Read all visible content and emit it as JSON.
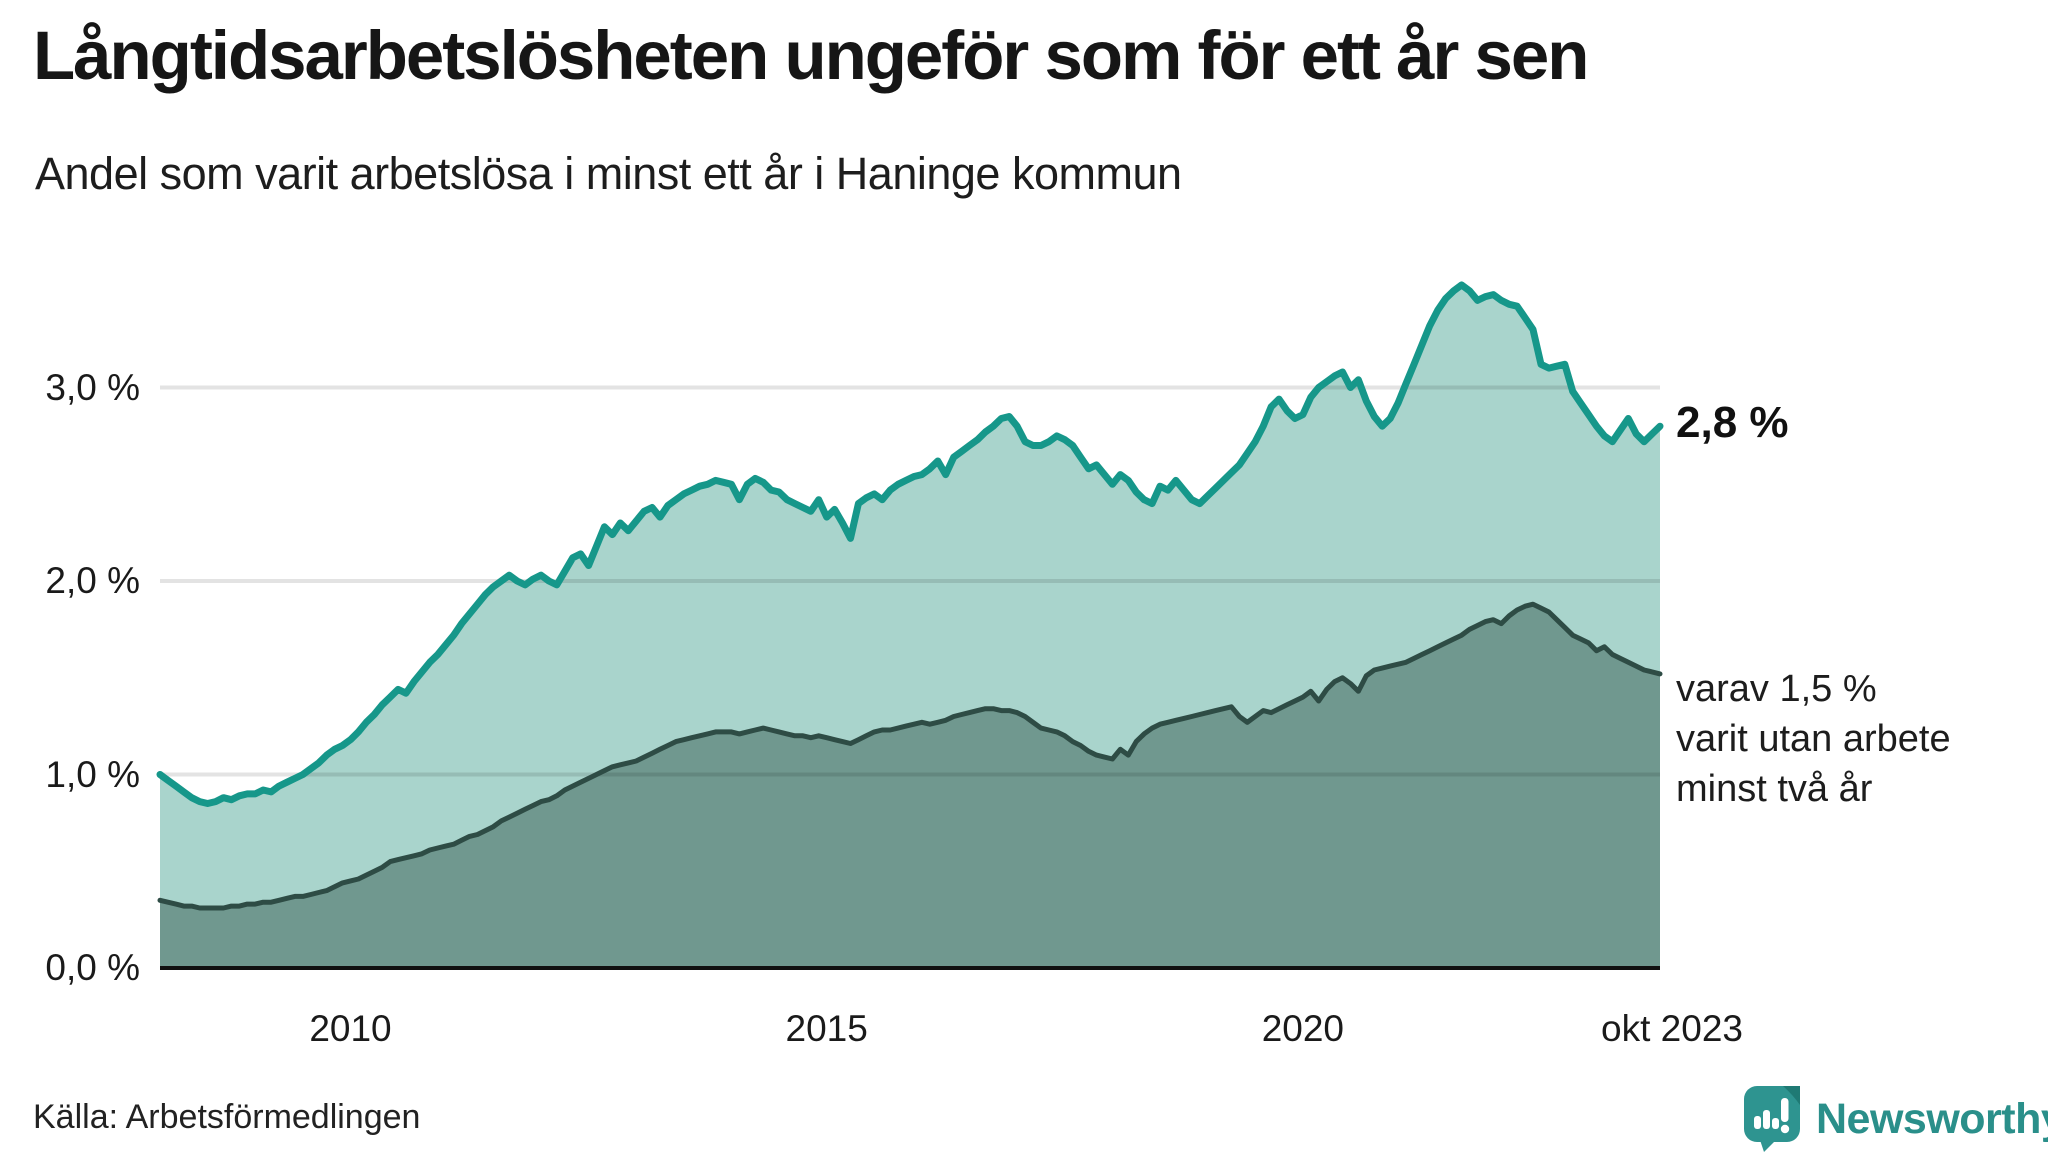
{
  "title": "Långtidsarbetslösheten ungeför som för ett år sen",
  "subtitle": "Andel som varit arbetslösa i minst ett år i Haninge kommun",
  "source": "Källa: Arbetsförmedlingen",
  "logo": {
    "text": "Newsworthy",
    "icon_color": "#2e9490",
    "icon_dark_corner": "#1f7a74",
    "text_color": "#2a8f8a"
  },
  "annotations": {
    "latest_total": "2,8 %",
    "secondary_lines": [
      "varav 1,5 %",
      "varit utan arbete",
      "minst två år"
    ]
  },
  "colors": {
    "background": "#ffffff",
    "grid": "rgba(0,0,0,0.11)",
    "axis": "#111111",
    "total_line": "#16978a",
    "total_fill": "#a9d4cc",
    "twoyear_line": "#2e4c45",
    "twoyear_fill": "#70988f"
  },
  "chart_data": {
    "type": "area",
    "title": "Långtidsarbetslösheten ungeför som för ett år sen",
    "subtitle": "Andel som varit arbetslösa i minst ett år i Haninge kommun",
    "unit": "%",
    "x_start": 2008.0,
    "x_end": 2023.75,
    "ylim": [
      0,
      3.6
    ],
    "grid": true,
    "legend": "annotations at line ends, no legend box",
    "y_ticks": [
      {
        "value": 0,
        "label": "0,0 %"
      },
      {
        "value": 1,
        "label": "1,0 %"
      },
      {
        "value": 2,
        "label": "2,0 %"
      },
      {
        "value": 3,
        "label": "3,0 %"
      }
    ],
    "x_ticks": [
      {
        "year": 2010,
        "label": "2010"
      },
      {
        "year": 2015,
        "label": "2015"
      },
      {
        "year": 2020,
        "label": "2020"
      },
      {
        "year": 2023.75,
        "label": "okt 2023"
      }
    ],
    "series": [
      {
        "name": "Andel arbetslösa minst ett år",
        "end_label": "2,8 %",
        "line_color": "#16978a",
        "fill_color": "#a9d4cc",
        "line_width": 7,
        "values": [
          1.0,
          0.97,
          0.94,
          0.91,
          0.88,
          0.86,
          0.85,
          0.86,
          0.88,
          0.87,
          0.89,
          0.9,
          0.9,
          0.92,
          0.91,
          0.94,
          0.96,
          0.98,
          1.0,
          1.03,
          1.06,
          1.1,
          1.13,
          1.15,
          1.18,
          1.22,
          1.27,
          1.31,
          1.36,
          1.4,
          1.44,
          1.42,
          1.48,
          1.53,
          1.58,
          1.62,
          1.67,
          1.72,
          1.78,
          1.83,
          1.88,
          1.93,
          1.97,
          2.0,
          2.03,
          2.0,
          1.98,
          2.01,
          2.03,
          2.0,
          1.98,
          2.05,
          2.12,
          2.14,
          2.08,
          2.18,
          2.28,
          2.24,
          2.3,
          2.26,
          2.31,
          2.36,
          2.38,
          2.33,
          2.39,
          2.42,
          2.45,
          2.47,
          2.49,
          2.5,
          2.52,
          2.51,
          2.5,
          2.42,
          2.5,
          2.53,
          2.51,
          2.47,
          2.46,
          2.42,
          2.4,
          2.38,
          2.36,
          2.42,
          2.33,
          2.37,
          2.3,
          2.22,
          2.4,
          2.43,
          2.45,
          2.42,
          2.47,
          2.5,
          2.52,
          2.54,
          2.55,
          2.58,
          2.62,
          2.55,
          2.64,
          2.67,
          2.7,
          2.73,
          2.77,
          2.8,
          2.84,
          2.85,
          2.8,
          2.72,
          2.7,
          2.7,
          2.72,
          2.75,
          2.73,
          2.7,
          2.64,
          2.58,
          2.6,
          2.55,
          2.5,
          2.55,
          2.52,
          2.46,
          2.42,
          2.4,
          2.49,
          2.47,
          2.52,
          2.47,
          2.42,
          2.4,
          2.44,
          2.48,
          2.52,
          2.56,
          2.6,
          2.66,
          2.72,
          2.8,
          2.9,
          2.94,
          2.88,
          2.84,
          2.86,
          2.95,
          3.0,
          3.03,
          3.06,
          3.08,
          3.0,
          3.04,
          2.93,
          2.85,
          2.8,
          2.84,
          2.92,
          3.02,
          3.12,
          3.22,
          3.32,
          3.4,
          3.46,
          3.5,
          3.53,
          3.5,
          3.45,
          3.47,
          3.48,
          3.45,
          3.43,
          3.42,
          3.36,
          3.3,
          3.12,
          3.1,
          3.11,
          3.12,
          2.98,
          2.92,
          2.86,
          2.8,
          2.75,
          2.72,
          2.78,
          2.84,
          2.76,
          2.72,
          2.76,
          2.8
        ]
      },
      {
        "name": "varav utan arbete minst två år",
        "end_label": "varav 1,5 % varit utan arbete minst två år",
        "line_color": "#2e4c45",
        "fill_color": "#70988f",
        "line_width": 5,
        "values": [
          0.35,
          0.34,
          0.33,
          0.32,
          0.32,
          0.31,
          0.31,
          0.31,
          0.31,
          0.32,
          0.32,
          0.33,
          0.33,
          0.34,
          0.34,
          0.35,
          0.36,
          0.37,
          0.37,
          0.38,
          0.39,
          0.4,
          0.42,
          0.44,
          0.45,
          0.46,
          0.48,
          0.5,
          0.52,
          0.55,
          0.56,
          0.57,
          0.58,
          0.59,
          0.61,
          0.62,
          0.63,
          0.64,
          0.66,
          0.68,
          0.69,
          0.71,
          0.73,
          0.76,
          0.78,
          0.8,
          0.82,
          0.84,
          0.86,
          0.87,
          0.89,
          0.92,
          0.94,
          0.96,
          0.98,
          1.0,
          1.02,
          1.04,
          1.05,
          1.06,
          1.07,
          1.09,
          1.11,
          1.13,
          1.15,
          1.17,
          1.18,
          1.19,
          1.2,
          1.21,
          1.22,
          1.22,
          1.22,
          1.21,
          1.22,
          1.23,
          1.24,
          1.23,
          1.22,
          1.21,
          1.2,
          1.2,
          1.19,
          1.2,
          1.19,
          1.18,
          1.17,
          1.16,
          1.18,
          1.2,
          1.22,
          1.23,
          1.23,
          1.24,
          1.25,
          1.26,
          1.27,
          1.26,
          1.27,
          1.28,
          1.3,
          1.31,
          1.32,
          1.33,
          1.34,
          1.34,
          1.33,
          1.33,
          1.32,
          1.3,
          1.27,
          1.24,
          1.23,
          1.22,
          1.2,
          1.17,
          1.15,
          1.12,
          1.1,
          1.09,
          1.08,
          1.13,
          1.1,
          1.17,
          1.21,
          1.24,
          1.26,
          1.27,
          1.28,
          1.29,
          1.3,
          1.31,
          1.32,
          1.33,
          1.34,
          1.35,
          1.3,
          1.27,
          1.3,
          1.33,
          1.32,
          1.34,
          1.36,
          1.38,
          1.4,
          1.43,
          1.38,
          1.44,
          1.48,
          1.5,
          1.47,
          1.43,
          1.51,
          1.54,
          1.55,
          1.56,
          1.57,
          1.58,
          1.6,
          1.62,
          1.64,
          1.66,
          1.68,
          1.7,
          1.72,
          1.75,
          1.77,
          1.79,
          1.8,
          1.78,
          1.82,
          1.85,
          1.87,
          1.88,
          1.86,
          1.84,
          1.8,
          1.76,
          1.72,
          1.7,
          1.68,
          1.64,
          1.66,
          1.62,
          1.6,
          1.58,
          1.56,
          1.54,
          1.53,
          1.52
        ]
      }
    ]
  }
}
